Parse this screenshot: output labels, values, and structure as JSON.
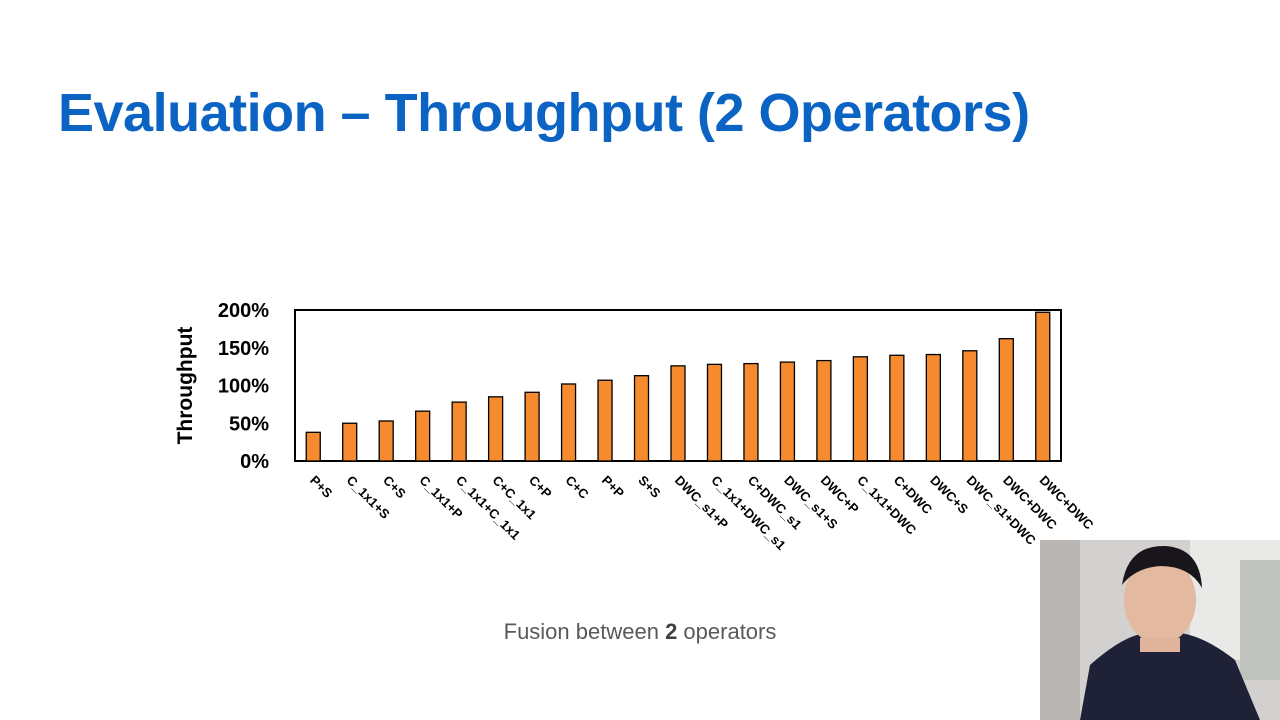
{
  "slide": {
    "title": "Evaluation – Throughput (2 Operators)",
    "caption_prefix": "Fusion between ",
    "caption_bold": "2",
    "caption_suffix": " operators"
  },
  "colors": {
    "title": "#0b63c4",
    "bar": "#f58a2f",
    "bar_edge": "#000000"
  },
  "chart_data": {
    "type": "bar",
    "title": "",
    "xlabel": "",
    "ylabel": "Throughput",
    "ylim": [
      0,
      200
    ],
    "yticks": [
      0,
      50,
      100,
      150,
      200
    ],
    "ytick_labels": [
      "0%",
      "50%",
      "100%",
      "150%",
      "200%"
    ],
    "grid": false,
    "categories": [
      "P+S",
      "C_1x1+S",
      "C+S",
      "C_1x1+P",
      "C_1x1+C_1x1",
      "C+C_1x1",
      "C+P",
      "C+C",
      "P+P",
      "S+S",
      "DWC_s1+P",
      "C_1x1+DWC_s1",
      "C+DWC_s1",
      "DWC_s1+S",
      "DWC+P",
      "C_1x1+DWC",
      "C+DWC",
      "DWC+S",
      "DWC_s1+DWC",
      "DWC+DWC",
      "DWC+DWC"
    ],
    "values": [
      38,
      50,
      53,
      66,
      78,
      85,
      91,
      102,
      107,
      113,
      126,
      128,
      129,
      131,
      133,
      138,
      140,
      141,
      146,
      162,
      197
    ]
  }
}
